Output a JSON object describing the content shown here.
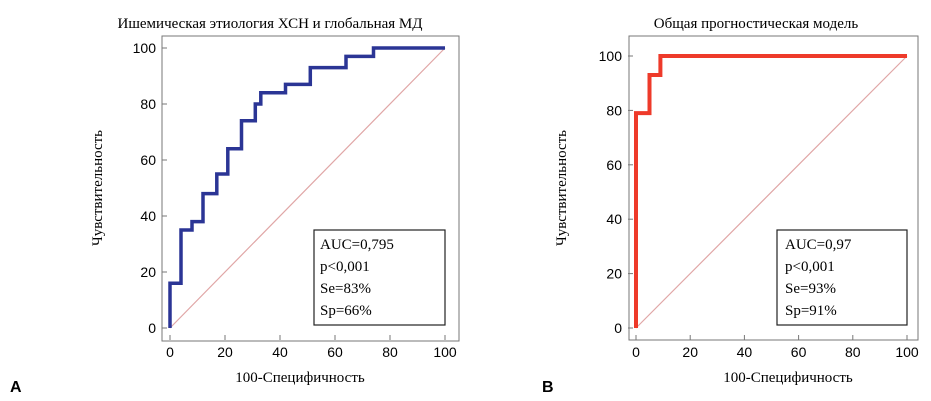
{
  "chart_data": [
    {
      "type": "line",
      "panel_label": "A",
      "title": "Ишемическая этиология ХСН и глобальная МД",
      "xlabel": "100-Специфичность",
      "ylabel": "Чувствительность",
      "xlim": [
        0,
        100
      ],
      "ylim": [
        0,
        100
      ],
      "x_ticks": [
        "0",
        "20",
        "40",
        "60",
        "80",
        "100"
      ],
      "y_ticks": [
        "0",
        "20",
        "40",
        "60",
        "80",
        "100"
      ],
      "grid": false,
      "line_color": "#2b3595",
      "diagonal_color": "#e0a6a6",
      "series": [
        {
          "points": [
            [
              0,
              0
            ],
            [
              0,
              16
            ],
            [
              4,
              16
            ],
            [
              4,
              35
            ],
            [
              8,
              35
            ],
            [
              8,
              38
            ],
            [
              12,
              38
            ],
            [
              12,
              48
            ],
            [
              17,
              48
            ],
            [
              17,
              55
            ],
            [
              21,
              55
            ],
            [
              21,
              64
            ],
            [
              26,
              64
            ],
            [
              26,
              74
            ],
            [
              31,
              74
            ],
            [
              31,
              80
            ],
            [
              33,
              80
            ],
            [
              33,
              84
            ],
            [
              42,
              84
            ],
            [
              42,
              87
            ],
            [
              51,
              87
            ],
            [
              51,
              93
            ],
            [
              64,
              93
            ],
            [
              64,
              97
            ],
            [
              74,
              97
            ],
            [
              74,
              100
            ],
            [
              100,
              100
            ]
          ]
        }
      ],
      "stats": [
        "AUC=0,795",
        "p<0,001",
        "Se=83%",
        "Sp=66%"
      ]
    },
    {
      "type": "line",
      "panel_label": "B",
      "title": "Общая прогностическая модель",
      "xlabel": "100-Специфичность",
      "ylabel": "Чувствительность",
      "xlim": [
        0,
        100
      ],
      "ylim": [
        0,
        100
      ],
      "x_ticks": [
        "0",
        "20",
        "40",
        "60",
        "80",
        "100"
      ],
      "y_ticks": [
        "0",
        "20",
        "40",
        "60",
        "80",
        "100"
      ],
      "grid": false,
      "line_color": "#ee3a2a",
      "diagonal_color": "#e0a6a6",
      "series": [
        {
          "points": [
            [
              0,
              0
            ],
            [
              0,
              79
            ],
            [
              5,
              79
            ],
            [
              5,
              93
            ],
            [
              9,
              93
            ],
            [
              9,
              100
            ],
            [
              100,
              100
            ]
          ]
        }
      ],
      "stats": [
        "AUC=0,97",
        "p<0,001",
        "Se=93%",
        "Sp=91%"
      ]
    }
  ]
}
